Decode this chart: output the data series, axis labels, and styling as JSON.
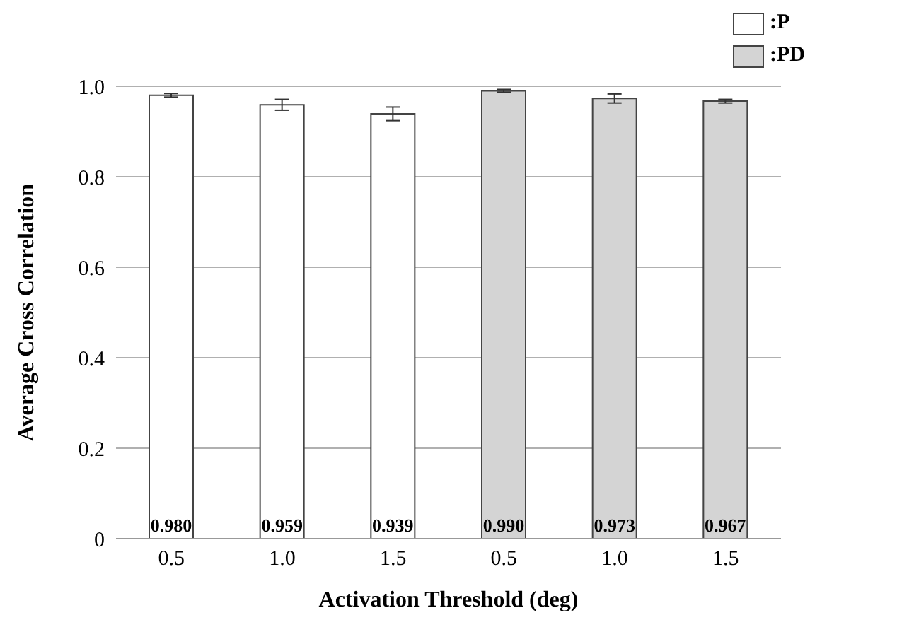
{
  "chart_data": {
    "type": "bar",
    "xlabel": "Activation Threshold (deg)",
    "ylabel": "Average Cross Correlation",
    "categories": [
      "0.5",
      "1.0",
      "1.5",
      "0.5",
      "1.0",
      "1.5"
    ],
    "series": [
      {
        "name": ":P",
        "color": "#ffffff",
        "values": [
          0.98,
          0.959,
          0.939,
          null,
          null,
          null
        ],
        "errors": [
          0.004,
          0.012,
          0.015,
          null,
          null,
          null
        ],
        "value_labels": [
          "0.980",
          "0.959",
          "0.939",
          null,
          null,
          null
        ]
      },
      {
        "name": ":PD",
        "color": "#d4d4d4",
        "values": [
          null,
          null,
          null,
          0.99,
          0.973,
          0.967
        ],
        "errors": [
          null,
          null,
          null,
          0.003,
          0.01,
          0.004
        ],
        "value_labels": [
          null,
          null,
          null,
          "0.990",
          "0.973",
          "0.967"
        ]
      }
    ],
    "ylim": [
      0,
      1
    ],
    "yticks": [
      0,
      {
        "value": 0.2,
        "label": "0.2"
      },
      {
        "value": 0.4,
        "label": "0.4"
      },
      {
        "value": 0.6,
        "label": "0.6"
      },
      {
        "value": 0.8,
        "label": "0.8"
      },
      {
        "value": 1,
        "label": "1.0"
      }
    ],
    "grid": "y",
    "legend": "top right"
  }
}
